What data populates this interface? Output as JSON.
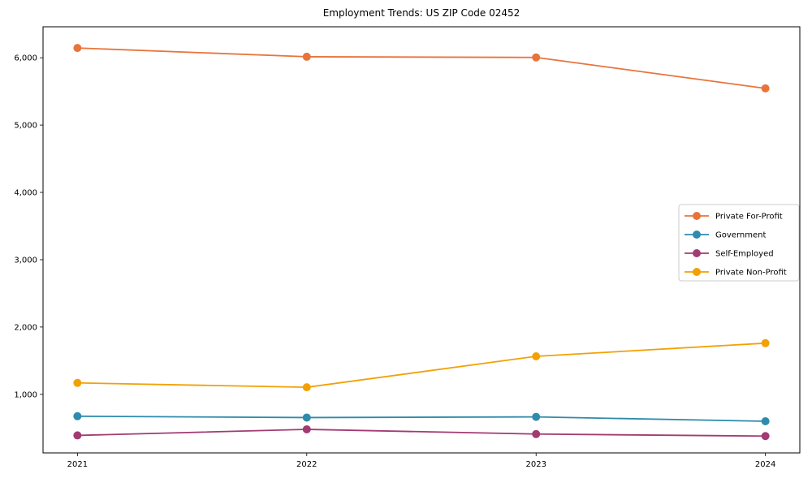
{
  "chart_data": {
    "type": "line",
    "title": "Employment Trends: US ZIP Code 02452",
    "xlabel": "",
    "ylabel": "",
    "categories": [
      "2021",
      "2022",
      "2023",
      "2024"
    ],
    "x": [
      2021,
      2022,
      2023,
      2024
    ],
    "series": [
      {
        "name": "Private For-Profit",
        "color": "#e8743b",
        "values": [
          6145,
          6015,
          6005,
          5545
        ]
      },
      {
        "name": "Government",
        "color": "#2e8bab",
        "values": [
          675,
          655,
          665,
          600
        ]
      },
      {
        "name": "Self-Employed",
        "color": "#a23b72",
        "values": [
          390,
          480,
          410,
          380
        ]
      },
      {
        "name": "Private Non-Profit",
        "color": "#f2a104",
        "values": [
          1170,
          1105,
          1565,
          1760
        ]
      }
    ],
    "yticks": [
      1000,
      2000,
      3000,
      4000,
      5000,
      6000
    ],
    "ytick_labels": [
      "1,000",
      "2,000",
      "3,000",
      "4,000",
      "5,000",
      "6,000"
    ],
    "xlim": [
      2020.85,
      2024.15
    ],
    "ylim": [
      130,
      6460
    ],
    "grid": false,
    "legend_position": "center-right",
    "spine_color": "#000000",
    "legend_border_color": "#cccccc",
    "legend_background": "#ffffff"
  }
}
